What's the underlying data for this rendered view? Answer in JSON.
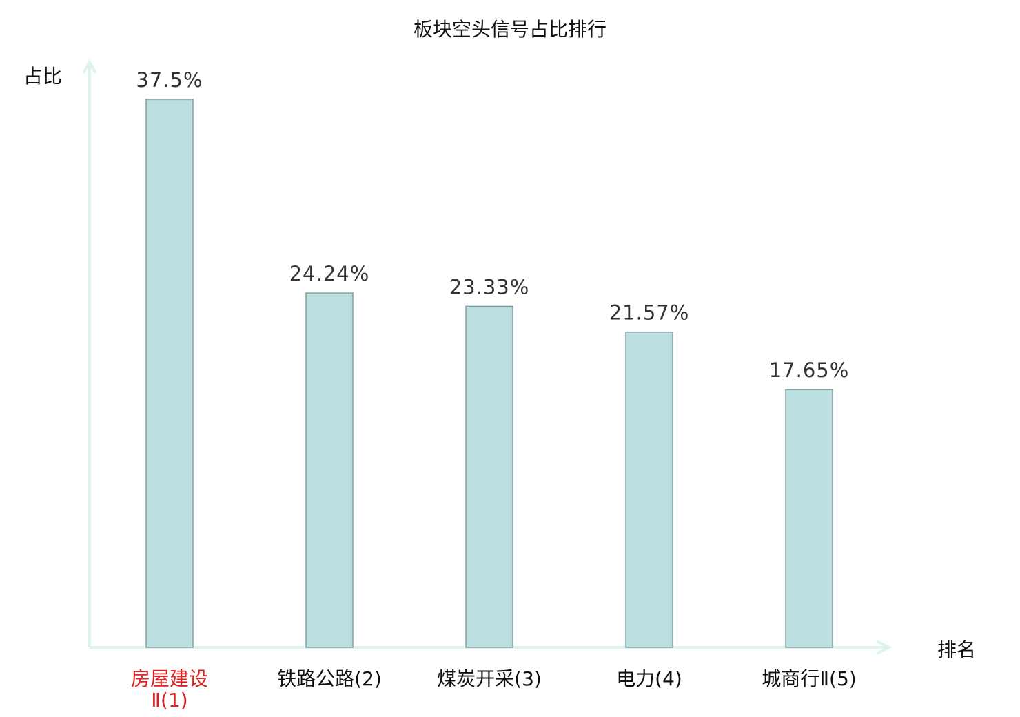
{
  "chart_data": {
    "type": "bar",
    "title": "板块空头信号占比排行",
    "ylabel": "占比",
    "xlabel": "排名",
    "categories": [
      {
        "name": "房屋建设",
        "suffix": "Ⅱ(1)",
        "highlight": true,
        "two_line": true
      },
      {
        "name": "铁路公路",
        "suffix": "(2)",
        "highlight": false,
        "two_line": false
      },
      {
        "name": "煤炭开采",
        "suffix": "(3)",
        "highlight": false,
        "two_line": false
      },
      {
        "name": "电力",
        "suffix": "(4)",
        "highlight": false,
        "two_line": false
      },
      {
        "name": "城商行",
        "suffix": "Ⅱ(5)",
        "highlight": false,
        "two_line": false
      }
    ],
    "values": [
      37.5,
      24.24,
      23.33,
      21.57,
      17.65
    ],
    "value_labels": [
      "37.5%",
      "24.24%",
      "23.33%",
      "21.57%",
      "17.65%"
    ],
    "ylim": [
      0,
      37.5
    ],
    "grid": false,
    "colors": {
      "bar_fill": "#bce0e1",
      "bar_stroke": "#7f9fa1",
      "axis": "#def2f0",
      "highlight_text": "#e02020",
      "text": "#111111",
      "value_text": "#333333"
    }
  }
}
